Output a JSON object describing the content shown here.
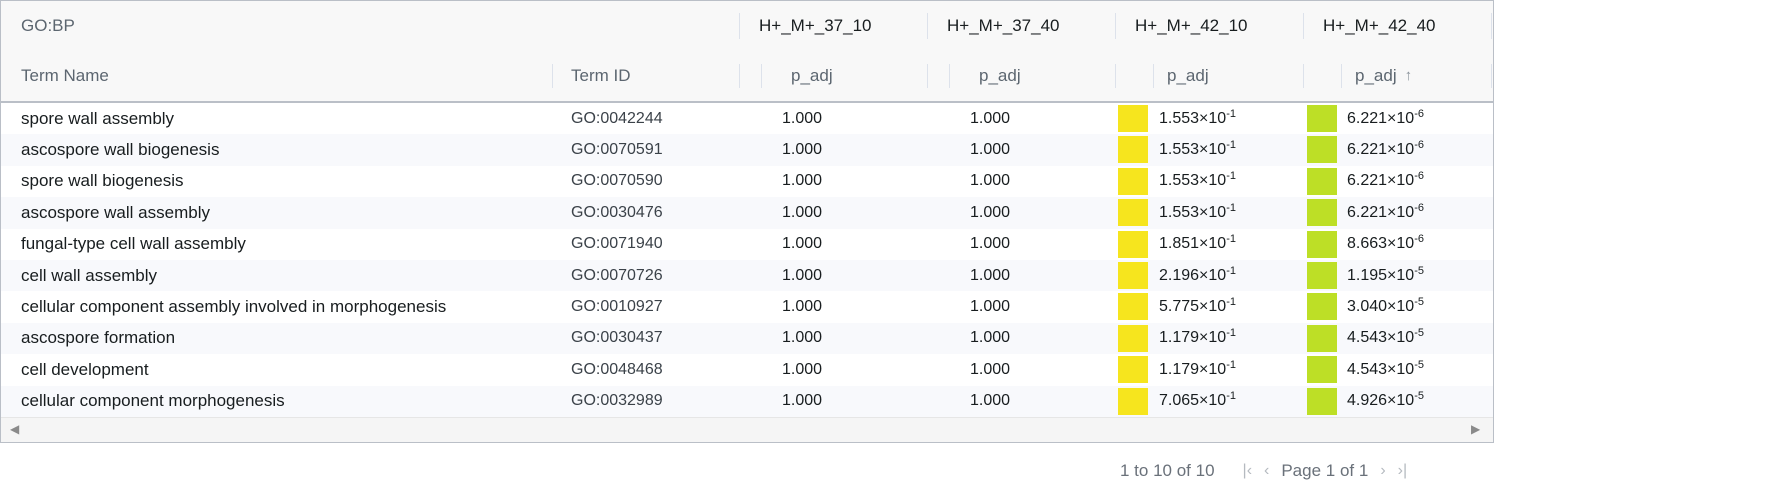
{
  "header": {
    "group_title": "GO:BP",
    "groups": [
      "H+_M+_37_10",
      "H+_M+_37_40",
      "H+_M+_42_10",
      "H+_M+_42_40"
    ],
    "col_term_name": "Term Name",
    "col_term_id": "Term ID",
    "col_padj": "p_adj",
    "sort_icon": "↑"
  },
  "colors": {
    "swatch_42_10": "#f6e51e",
    "swatch_42_40": "#bddf26",
    "border": "#babfc7",
    "header_bg": "#f8f8f8",
    "alt_row_bg": "#f8f9fc"
  },
  "rows": [
    {
      "name": "spore wall assembly",
      "id": "GO:0042244",
      "p1": "1.000",
      "p2": "1.000",
      "p3m": "1.553×10",
      "p3e": "-1",
      "p4m": "6.221×10",
      "p4e": "-6"
    },
    {
      "name": "ascospore wall biogenesis",
      "id": "GO:0070591",
      "p1": "1.000",
      "p2": "1.000",
      "p3m": "1.553×10",
      "p3e": "-1",
      "p4m": "6.221×10",
      "p4e": "-6"
    },
    {
      "name": "spore wall biogenesis",
      "id": "GO:0070590",
      "p1": "1.000",
      "p2": "1.000",
      "p3m": "1.553×10",
      "p3e": "-1",
      "p4m": "6.221×10",
      "p4e": "-6"
    },
    {
      "name": "ascospore wall assembly",
      "id": "GO:0030476",
      "p1": "1.000",
      "p2": "1.000",
      "p3m": "1.553×10",
      "p3e": "-1",
      "p4m": "6.221×10",
      "p4e": "-6"
    },
    {
      "name": "fungal-type cell wall assembly",
      "id": "GO:0071940",
      "p1": "1.000",
      "p2": "1.000",
      "p3m": "1.851×10",
      "p3e": "-1",
      "p4m": "8.663×10",
      "p4e": "-6"
    },
    {
      "name": "cell wall assembly",
      "id": "GO:0070726",
      "p1": "1.000",
      "p2": "1.000",
      "p3m": "2.196×10",
      "p3e": "-1",
      "p4m": "1.195×10",
      "p4e": "-5"
    },
    {
      "name": "cellular component assembly involved in morphogenesis",
      "id": "GO:0010927",
      "p1": "1.000",
      "p2": "1.000",
      "p3m": "5.775×10",
      "p3e": "-1",
      "p4m": "3.040×10",
      "p4e": "-5"
    },
    {
      "name": "ascospore formation",
      "id": "GO:0030437",
      "p1": "1.000",
      "p2": "1.000",
      "p3m": "1.179×10",
      "p3e": "-1",
      "p4m": "4.543×10",
      "p4e": "-5"
    },
    {
      "name": "cell development",
      "id": "GO:0048468",
      "p1": "1.000",
      "p2": "1.000",
      "p3m": "1.179×10",
      "p3e": "-1",
      "p4m": "4.543×10",
      "p4e": "-5"
    },
    {
      "name": "cellular component morphogenesis",
      "id": "GO:0032989",
      "p1": "1.000",
      "p2": "1.000",
      "p3m": "7.065×10",
      "p3e": "-1",
      "p4m": "4.926×10",
      "p4e": "-5"
    }
  ],
  "pager": {
    "summary": "1 to 10 of 10",
    "first_icon": "first-page-icon",
    "prev_icon": "prev-page-icon",
    "page_text": "Page 1 of 1",
    "next_icon": "next-page-icon",
    "last_icon": "last-page-icon"
  }
}
